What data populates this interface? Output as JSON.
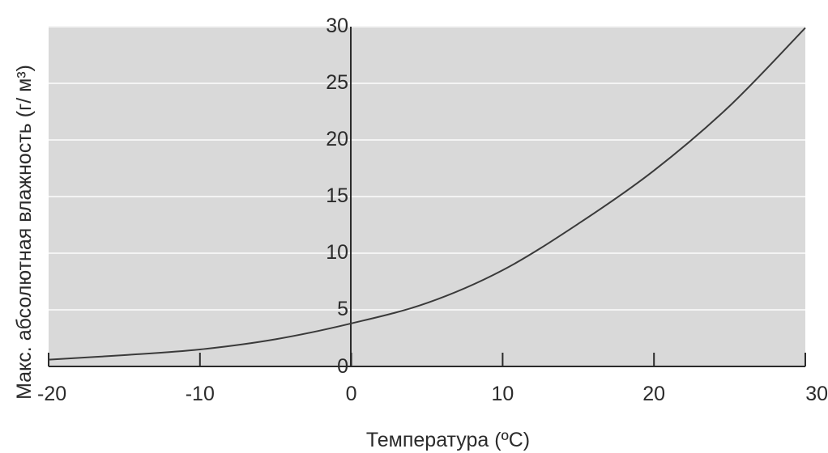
{
  "chart_data": {
    "type": "line",
    "title": "",
    "xlabel": "Температура (ºC)",
    "ylabel": "Макс. абсолютная влажность (г/ м³)",
    "xlim": [
      -20,
      30
    ],
    "ylim": [
      0,
      30
    ],
    "x_ticks": [
      "-20",
      "-10",
      "0",
      "10",
      "20",
      "30"
    ],
    "y_ticks": [
      "0",
      "5",
      "10",
      "15",
      "20",
      "25",
      "30"
    ],
    "grid": true,
    "series": [
      {
        "x": [
          -20,
          -15,
          -10,
          -5,
          0,
          5,
          10,
          15,
          20,
          25,
          30
        ],
        "y": [
          0.6,
          1.0,
          1.5,
          2.4,
          3.8,
          5.6,
          8.5,
          12.6,
          17.3,
          23.0,
          29.9
        ]
      }
    ],
    "colors": {
      "plot_bg": "#d9d9d9",
      "grid": "#f4f4f4",
      "axis": "#2b2b2b",
      "line": "#3a3a3a"
    }
  }
}
